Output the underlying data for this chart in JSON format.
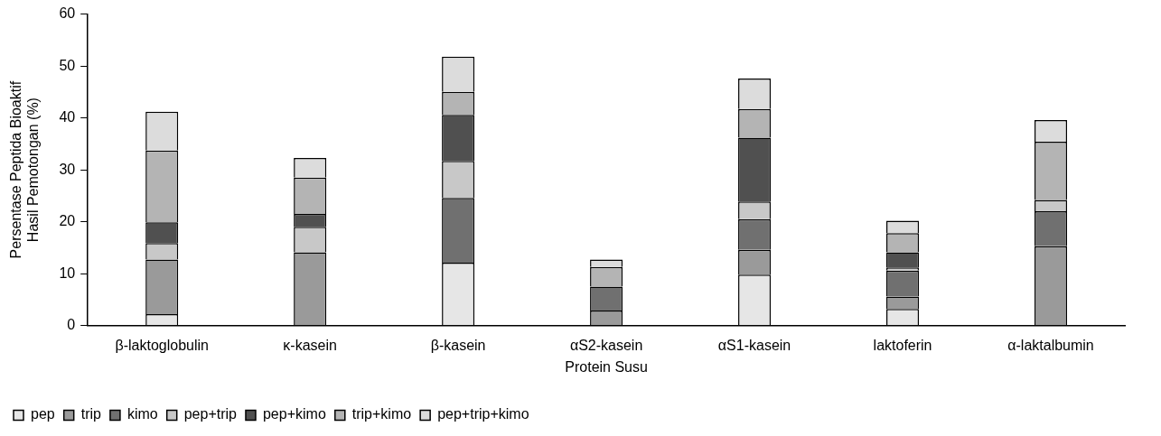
{
  "chart_data": {
    "type": "bar",
    "stacked": true,
    "xlabel": "Protein Susu",
    "ylabel": "Persentase Peptida Bioaktif\nHasil Pemotongan (%)",
    "categories": [
      "β-laktoglobulin",
      "κ-kasein",
      "β-kasein",
      "αS2-kasein",
      "αS1-kasein",
      "laktoferin",
      "α-laktalbumin"
    ],
    "series": [
      {
        "name": "pep",
        "color": "#e6e6e6",
        "values": [
          2.2,
          0,
          12.1,
          0,
          9.8,
          3.2,
          0
        ]
      },
      {
        "name": "trip",
        "color": "#9a9a9a",
        "values": [
          10.5,
          14.1,
          0,
          2.9,
          4.8,
          2.4,
          15.3
        ]
      },
      {
        "name": "kimo",
        "color": "#707070",
        "values": [
          0,
          0,
          12.5,
          4.6,
          5.9,
          5.0,
          6.7
        ]
      },
      {
        "name": "pep+trip",
        "color": "#c8c8c8",
        "values": [
          3.2,
          4.9,
          7.1,
          0,
          3.4,
          0.6,
          2.2
        ]
      },
      {
        "name": "pep+kimo",
        "color": "#505050",
        "values": [
          4.0,
          2.5,
          8.9,
          0,
          12.3,
          2.9,
          0
        ]
      },
      {
        "name": "trip+kimo",
        "color": "#b4b4b4",
        "values": [
          13.8,
          7.0,
          4.4,
          3.8,
          5.5,
          3.7,
          11.2
        ]
      },
      {
        "name": "pep+trip+kimo",
        "color": "#dcdcdc",
        "values": [
          7.5,
          3.8,
          6.8,
          1.4,
          5.9,
          2.4,
          4.2
        ]
      }
    ],
    "ylim": [
      0,
      60
    ],
    "yticks": [
      0,
      10,
      20,
      30,
      40,
      50,
      60
    ],
    "grid": false,
    "legend": "bottom"
  }
}
